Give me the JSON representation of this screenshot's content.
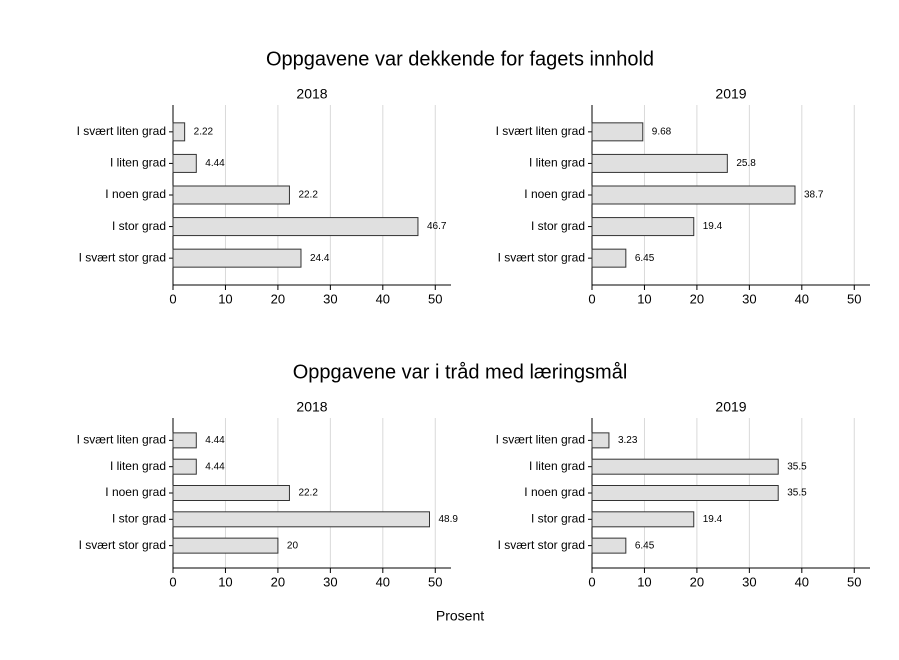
{
  "suptitles": [
    "Oppgavene var dekkende for fagets innhold",
    "Oppgavene var i tråd med læringsmål"
  ],
  "xlabel": "Prosent",
  "chart_data": [
    {
      "type": "barh",
      "title": "2018",
      "categories": [
        "I svært liten grad",
        "I liten grad",
        "I noen grad",
        "I stor grad",
        "I svært stor grad"
      ],
      "values": [
        2.22,
        4.44,
        22.2,
        46.7,
        24.4
      ],
      "color": "#e0e0e0",
      "xlim": [
        0,
        53
      ],
      "xticks": [
        0,
        10,
        20,
        30,
        40,
        50
      ],
      "grid": true
    },
    {
      "type": "barh",
      "title": "2019",
      "categories": [
        "I svært liten grad",
        "I liten grad",
        "I noen grad",
        "I stor grad",
        "I svært stor grad"
      ],
      "values": [
        9.68,
        25.8,
        38.7,
        19.4,
        6.45
      ],
      "color": "#e0e0e0",
      "xlim": [
        0,
        53
      ],
      "xticks": [
        0,
        10,
        20,
        30,
        40,
        50
      ],
      "grid": true
    },
    {
      "type": "barh",
      "title": "2018",
      "categories": [
        "I svært liten grad",
        "I liten grad",
        "I noen grad",
        "I stor grad",
        "I svært stor grad"
      ],
      "values": [
        4.44,
        4.44,
        22.2,
        48.9,
        20
      ],
      "color": "#e0e0e0",
      "xlim": [
        0,
        53
      ],
      "xticks": [
        0,
        10,
        20,
        30,
        40,
        50
      ],
      "grid": true
    },
    {
      "type": "barh",
      "title": "2019",
      "categories": [
        "I svært liten grad",
        "I liten grad",
        "I noen grad",
        "I stor grad",
        "I svært stor grad"
      ],
      "values": [
        3.23,
        35.5,
        35.5,
        19.4,
        6.45
      ],
      "color": "#e0e0e0",
      "xlim": [
        0,
        53
      ],
      "xticks": [
        0,
        10,
        20,
        30,
        40,
        50
      ],
      "grid": true
    }
  ]
}
